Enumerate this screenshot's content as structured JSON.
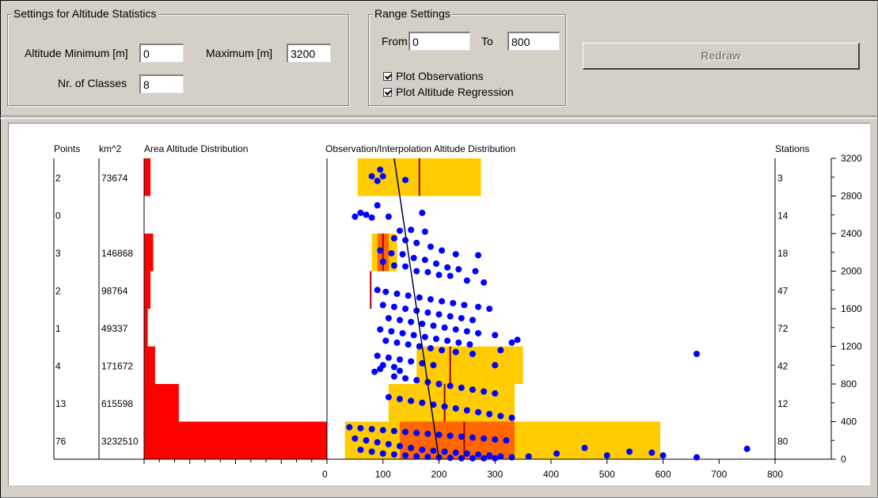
{
  "altitude_settings": {
    "legend": "Settings for Altitude Statistics",
    "min_label": "Altitude Minimum [m]",
    "min_value": "0",
    "max_label": "Maximum [m]",
    "max_value": "3200",
    "classes_label": "Nr. of Classes",
    "classes_value": "8"
  },
  "range_settings": {
    "legend": "Range Settings",
    "from_label": "From",
    "from_value": "0",
    "to_label": "To",
    "to_value": "800",
    "plot_observations_label": "Plot Observations",
    "plot_observations_checked": true,
    "plot_regression_label": "Plot Altitude Regression",
    "plot_regression_checked": true
  },
  "redraw_label": "Redraw",
  "chart_data": {
    "type": "scatter",
    "headers": {
      "points": "Points",
      "area": "km^2",
      "area_distribution": "Area Altitude Distribution",
      "observation": "Observation/Interpolation Altitude Distribution",
      "stations": "Stations"
    },
    "colors": {
      "area_bar": "#ff0000",
      "box": "#ffcc00",
      "box_dark": "#ff6600",
      "median": "#a00000",
      "points": "#0000ff",
      "regression": "#000040"
    },
    "ylim": [
      0,
      3200
    ],
    "yticks": [
      "0",
      "400",
      "800",
      "1200",
      "1600",
      "2000",
      "2400",
      "2800",
      "3200"
    ],
    "xlim": [
      0,
      800
    ],
    "xticks": [
      "0",
      "100",
      "200",
      "300",
      "400",
      "500",
      "600",
      "700",
      "800"
    ],
    "classes": [
      {
        "from": 2800,
        "to": 3200,
        "points": "2",
        "area": "73674",
        "stations": "3",
        "q1": 55,
        "q3": 275,
        "median": 165,
        "dark": null
      },
      {
        "from": 2400,
        "to": 2800,
        "points": "0",
        "area": "",
        "stations": "14",
        "q1": null,
        "q3": null,
        "median": null,
        "dark": null
      },
      {
        "from": 2000,
        "to": 2400,
        "points": "3",
        "area": "146868",
        "stations": "18",
        "q1": 80,
        "q3": 125,
        "median": 100,
        "dark": [
          90,
          110
        ]
      },
      {
        "from": 1600,
        "to": 2000,
        "points": "2",
        "area": "98764",
        "stations": "47",
        "q1": null,
        "q3": null,
        "median": 78,
        "dark": null
      },
      {
        "from": 1200,
        "to": 1600,
        "points": "1",
        "area": "49337",
        "stations": "72",
        "q1": null,
        "q3": null,
        "median": null,
        "dark": null
      },
      {
        "from": 800,
        "to": 1200,
        "points": "4",
        "area": "171672",
        "stations": "42",
        "q1": 160,
        "q3": 350,
        "median": 220,
        "dark": null
      },
      {
        "from": 400,
        "to": 800,
        "points": "13",
        "area": "615598",
        "stations": "12",
        "q1": 110,
        "q3": 335,
        "median": 210,
        "dark": null
      },
      {
        "from": 0,
        "to": 400,
        "points": "76",
        "area": "3232510",
        "stations": "80",
        "q1": 32,
        "q3": 595,
        "median": 245,
        "dark": [
          130,
          335
        ]
      }
    ],
    "area_share": [
      0.035,
      0,
      0.05,
      0.035,
      0.02,
      0.06,
      0.19,
      1.0
    ],
    "regression": {
      "x_top": 120,
      "x_bottom": 200
    },
    "points": [
      [
        95,
        3080
      ],
      [
        80,
        3010
      ],
      [
        90,
        2960
      ],
      [
        100,
        3010
      ],
      [
        140,
        2970
      ],
      [
        60,
        2620
      ],
      [
        50,
        2580
      ],
      [
        70,
        2600
      ],
      [
        80,
        2570
      ],
      [
        90,
        2700
      ],
      [
        110,
        2580
      ],
      [
        170,
        2620
      ],
      [
        130,
        2430
      ],
      [
        150,
        2440
      ],
      [
        175,
        2420
      ],
      [
        120,
        2350
      ],
      [
        140,
        2330
      ],
      [
        160,
        2300
      ],
      [
        185,
        2260
      ],
      [
        205,
        2220
      ],
      [
        230,
        2180
      ],
      [
        270,
        2170
      ],
      [
        95,
        2220
      ],
      [
        115,
        2190
      ],
      [
        135,
        2180
      ],
      [
        155,
        2140
      ],
      [
        175,
        2120
      ],
      [
        195,
        2080
      ],
      [
        215,
        2040
      ],
      [
        235,
        2020
      ],
      [
        265,
        2000
      ],
      [
        100,
        2100
      ],
      [
        120,
        2060
      ],
      [
        140,
        2050
      ],
      [
        160,
        2000
      ],
      [
        180,
        1990
      ],
      [
        200,
        1960
      ],
      [
        220,
        1950
      ],
      [
        250,
        1900
      ],
      [
        280,
        1880
      ],
      [
        90,
        1800
      ],
      [
        105,
        1780
      ],
      [
        125,
        1760
      ],
      [
        145,
        1740
      ],
      [
        165,
        1720
      ],
      [
        185,
        1700
      ],
      [
        205,
        1680
      ],
      [
        225,
        1660
      ],
      [
        245,
        1640
      ],
      [
        270,
        1620
      ],
      [
        290,
        1600
      ],
      [
        100,
        1640
      ],
      [
        120,
        1620
      ],
      [
        140,
        1600
      ],
      [
        160,
        1580
      ],
      [
        180,
        1560
      ],
      [
        200,
        1540
      ],
      [
        220,
        1520
      ],
      [
        240,
        1500
      ],
      [
        260,
        1480
      ],
      [
        110,
        1500
      ],
      [
        130,
        1480
      ],
      [
        150,
        1460
      ],
      [
        170,
        1440
      ],
      [
        190,
        1420
      ],
      [
        210,
        1400
      ],
      [
        230,
        1380
      ],
      [
        250,
        1360
      ],
      [
        270,
        1340
      ],
      [
        300,
        1320
      ],
      [
        95,
        1380
      ],
      [
        115,
        1360
      ],
      [
        135,
        1340
      ],
      [
        155,
        1320
      ],
      [
        175,
        1300
      ],
      [
        195,
        1280
      ],
      [
        215,
        1260
      ],
      [
        235,
        1240
      ],
      [
        255,
        1220
      ],
      [
        105,
        1260
      ],
      [
        125,
        1240
      ],
      [
        145,
        1220
      ],
      [
        165,
        1200
      ],
      [
        185,
        1180
      ],
      [
        205,
        1160
      ],
      [
        230,
        1140
      ],
      [
        260,
        1120
      ],
      [
        310,
        1160
      ],
      [
        330,
        1240
      ],
      [
        340,
        1270
      ],
      [
        90,
        1100
      ],
      [
        110,
        1080
      ],
      [
        130,
        1060
      ],
      [
        150,
        1040
      ],
      [
        170,
        1020
      ],
      [
        190,
        1000
      ],
      [
        100,
        1000
      ],
      [
        120,
        980
      ],
      [
        95,
        960
      ],
      [
        85,
        930
      ],
      [
        130,
        940
      ],
      [
        660,
        1120
      ],
      [
        300,
        1000
      ],
      [
        120,
        880
      ],
      [
        140,
        860
      ],
      [
        160,
        840
      ],
      [
        180,
        820
      ],
      [
        200,
        800
      ],
      [
        220,
        780
      ],
      [
        240,
        760
      ],
      [
        260,
        740
      ],
      [
        280,
        720
      ],
      [
        300,
        700
      ],
      [
        110,
        660
      ],
      [
        130,
        640
      ],
      [
        150,
        620
      ],
      [
        170,
        600
      ],
      [
        190,
        580
      ],
      [
        210,
        560
      ],
      [
        230,
        540
      ],
      [
        250,
        520
      ],
      [
        270,
        500
      ],
      [
        290,
        480
      ],
      [
        310,
        460
      ],
      [
        330,
        440
      ],
      [
        40,
        340
      ],
      [
        60,
        330
      ],
      [
        80,
        320
      ],
      [
        100,
        310
      ],
      [
        120,
        300
      ],
      [
        140,
        290
      ],
      [
        160,
        280
      ],
      [
        180,
        270
      ],
      [
        200,
        260
      ],
      [
        220,
        250
      ],
      [
        240,
        240
      ],
      [
        260,
        230
      ],
      [
        280,
        220
      ],
      [
        300,
        210
      ],
      [
        320,
        200
      ],
      [
        50,
        220
      ],
      [
        70,
        200
      ],
      [
        90,
        180
      ],
      [
        110,
        160
      ],
      [
        130,
        140
      ],
      [
        150,
        120
      ],
      [
        170,
        100
      ],
      [
        190,
        90
      ],
      [
        210,
        80
      ],
      [
        230,
        70
      ],
      [
        250,
        60
      ],
      [
        270,
        50
      ],
      [
        290,
        40
      ],
      [
        310,
        30
      ],
      [
        330,
        20
      ],
      [
        60,
        100
      ],
      [
        80,
        80
      ],
      [
        100,
        60
      ],
      [
        120,
        50
      ],
      [
        140,
        40
      ],
      [
        160,
        30
      ],
      [
        180,
        25
      ],
      [
        200,
        20
      ],
      [
        220,
        15
      ],
      [
        240,
        10
      ],
      [
        260,
        10
      ],
      [
        280,
        10
      ],
      [
        300,
        10
      ],
      [
        360,
        30
      ],
      [
        410,
        60
      ],
      [
        460,
        120
      ],
      [
        500,
        40
      ],
      [
        540,
        80
      ],
      [
        580,
        70
      ],
      [
        600,
        40
      ],
      [
        660,
        20
      ],
      [
        750,
        110
      ]
    ]
  }
}
